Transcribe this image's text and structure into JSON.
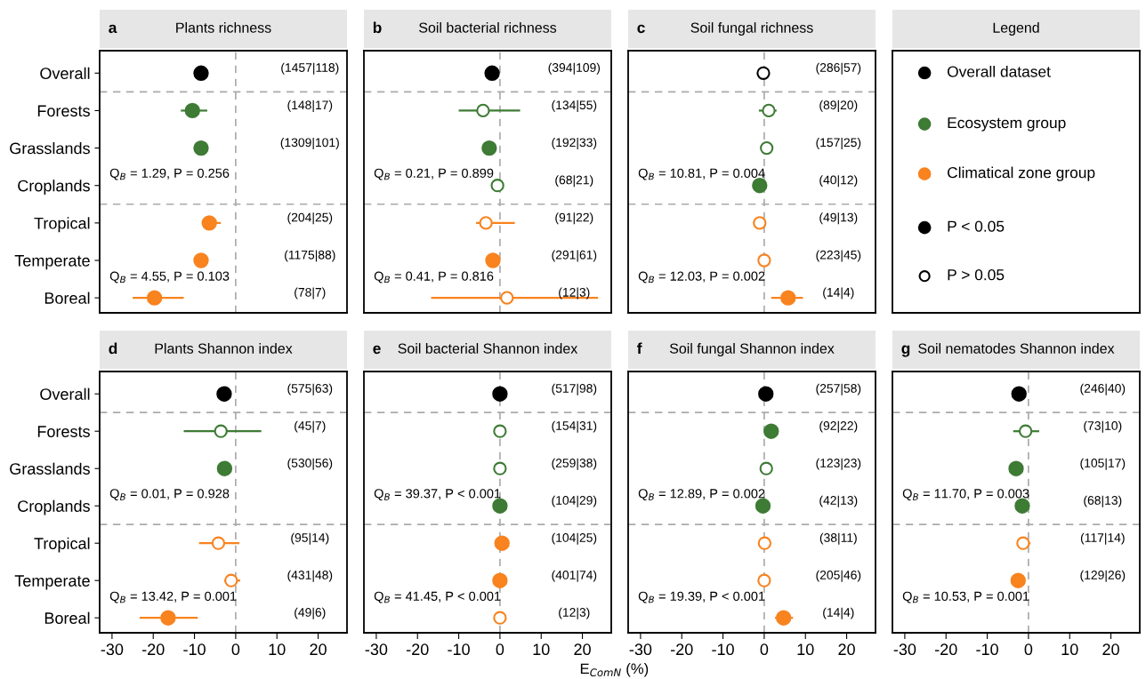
{
  "chart_data": [
    {
      "type": "scatter",
      "subtitle": "a",
      "title": "Plants richness",
      "orientation": "horizontal",
      "marker": "circle",
      "tick_labels": "y",
      "xlim": [
        -33,
        27
      ],
      "xticks": [
        -30,
        -20,
        -10,
        0,
        10,
        20
      ],
      "categories": [
        "Overall",
        "Forests",
        "Grasslands",
        "Croplands",
        "Tropical",
        "Temperate",
        "Boreal"
      ],
      "series": [
        {
          "colors": [
            "#000000",
            "#3e7b35",
            "#3e7b35",
            null,
            "#f8831f",
            "#f8831f",
            "#f8831f"
          ],
          "values": [
            -8.4,
            -10.5,
            -8.4,
            null,
            -6.4,
            -8.4,
            -19.7
          ],
          "errors": [
            null,
            [
              -13.3,
              -6.9
            ],
            null,
            null,
            [
              -7.5,
              -3.6
            ],
            null,
            [
              -25,
              -12.6
            ]
          ]
        }
      ],
      "value_labels": [
        "(1457|118)",
        "(148|17)",
        "(1309|101)",
        null,
        "(204|25)",
        "(1175|88)",
        "(78|7)"
      ],
      "annotations": [
        "Q$_{B}$ = 1.29, P = 0.256",
        "Q$_{B}$ = 4.55, P = 0.103"
      ],
      "ref_lines": [
        {
          "axis": "x",
          "value": 0,
          "color": "#aaaaaa",
          "line_style": "dashed"
        }
      ]
    },
    {
      "type": "scatter",
      "subtitle": "b",
      "title": "Soil bacterial richness",
      "orientation": "horizontal",
      "marker": "circle",
      "tick_labels": false,
      "xlim": [
        -33,
        27
      ],
      "xticks": [
        -30,
        -20,
        -10,
        0,
        10,
        20
      ],
      "categories": [
        null,
        null,
        null,
        null,
        null,
        null,
        null
      ],
      "series": [
        {
          "colors": [
            "#000000",
            null,
            "#3e7b35",
            null,
            null,
            "#f8831f",
            null
          ],
          "values": [
            -1.9,
            null,
            -2.6,
            null,
            null,
            -1.7,
            null
          ],
          "errors": [
            null,
            null,
            null,
            null,
            null,
            null,
            null
          ]
        },
        {
          "color": "#ffffff",
          "colors": [
            null,
            "#3e7b35",
            null,
            "#3e7b35",
            "#f8831f",
            null,
            "#f8831f"
          ],
          "values": [
            null,
            -4.1,
            null,
            -0.6,
            -3.4,
            null,
            1.7
          ],
          "errors": [
            null,
            [
              -10,
              4.9
            ],
            null,
            null,
            [
              -5.8,
              3.6
            ],
            null,
            [
              -16.7,
              23.8
            ]
          ]
        }
      ],
      "value_labels": [
        "(394|109)",
        "(134|55)",
        "(192|33)",
        "(68|21)",
        "(91|22)",
        "(291|61)",
        "(12|3)"
      ],
      "annotations": [
        "Q$_{B}$ = 0.21, P = 0.899",
        "Q$_{B}$ = 0.41, P = 0.816"
      ],
      "ref_lines": [
        {
          "axis": "x",
          "value": 0,
          "color": "#aaaaaa",
          "line_style": "dashed"
        }
      ]
    },
    {
      "type": "scatter",
      "subtitle": "c",
      "title": "Soil fungal richness",
      "orientation": "horizontal",
      "marker": "circle",
      "tick_labels": false,
      "xlim": [
        -33,
        27
      ],
      "xticks": [
        -30,
        -20,
        -10,
        0,
        10,
        20
      ],
      "categories": [
        null,
        null,
        null,
        null,
        null,
        null,
        null
      ],
      "series": [
        {
          "colors": [
            null,
            null,
            null,
            "#3e7b35",
            null,
            null,
            "#f8831f"
          ],
          "values": [
            null,
            null,
            null,
            -1.1,
            null,
            null,
            5.8
          ],
          "errors": [
            null,
            null,
            null,
            null,
            null,
            null,
            [
              1.7,
              9.4
            ]
          ]
        },
        {
          "color": "#ffffff",
          "colors": [
            "#000000",
            "#3e7b35",
            "#3e7b35",
            null,
            "#f8831f",
            "#f8831f",
            null
          ],
          "values": [
            -0.2,
            1.1,
            0.6,
            null,
            -1.1,
            0,
            null
          ],
          "errors": [
            null,
            [
              -1.3,
              3.0
            ],
            null,
            null,
            [
              -2.6,
              0
            ],
            null,
            null
          ]
        }
      ],
      "value_labels": [
        "(286|57)",
        "(89|20)",
        "(157|25)",
        "(40|12)",
        "(49|13)",
        "(223|45)",
        "(14|4)"
      ],
      "annotations": [
        "Q$_{B}$ = 10.81, P = 0.004",
        "Q$_{B}$ = 12.03, P = 0.002"
      ],
      "ref_lines": [
        {
          "axis": "x",
          "value": 0,
          "color": "#aaaaaa",
          "line_style": "dashed"
        }
      ]
    },
    {
      "type": "other",
      "title": "Legend",
      "series": [
        {
          "name": "Overall dataset",
          "color": "#000000"
        },
        {
          "name": "Ecosystem group",
          "color": "#3e7b35"
        },
        {
          "name": "Climatical zone group",
          "color": "#f8831f"
        },
        {
          "name": "P < 0.05",
          "color": "#000000"
        },
        {
          "name": "P > 0.05",
          "color": "#ffffff"
        }
      ]
    },
    {
      "type": "scatter",
      "subtitle": "d",
      "title": "Plants Shannon index",
      "orientation": "horizontal",
      "marker": "circle",
      "xlim": [
        -33,
        27
      ],
      "xticks": [
        -30,
        -20,
        -10,
        0,
        10,
        20
      ],
      "categories": [
        "Overall",
        "Forests",
        "Grasslands",
        "Croplands",
        "Tropical",
        "Temperate",
        "Boreal"
      ],
      "series": [
        {
          "colors": [
            "#000000",
            null,
            "#3e7b35",
            null,
            null,
            null,
            "#f8831f"
          ],
          "values": [
            -2.8,
            null,
            -2.7,
            null,
            null,
            null,
            -16.4
          ],
          "errors": [
            [
              -4.1,
              -1.3
            ],
            null,
            null,
            null,
            null,
            null,
            [
              -23.3,
              -9.2
            ]
          ]
        },
        {
          "color": "#ffffff",
          "colors": [
            null,
            "#3e7b35",
            null,
            null,
            "#f8831f",
            "#f8831f",
            null
          ],
          "values": [
            null,
            -3.6,
            null,
            null,
            -4.2,
            -1.1,
            null
          ],
          "errors": [
            null,
            [
              -12.6,
              6.2
            ],
            null,
            null,
            [
              -8.9,
              0.9
            ],
            [
              -2.8,
              1.1
            ],
            null
          ]
        }
      ],
      "value_labels": [
        "(575|63)",
        "(45|7)",
        "(530|56)",
        null,
        "(95|14)",
        "(431|48)",
        "(49|6)"
      ],
      "annotations": [
        "Q$_{B}$ = 0.01, P = 0.928",
        "Q$_{B}$ = 13.42, P = 0.001"
      ],
      "ref_lines": [
        {
          "axis": "x",
          "value": 0,
          "color": "#aaaaaa",
          "line_style": "dashed"
        }
      ]
    },
    {
      "type": "scatter",
      "subtitle": "e",
      "title": "Soil bacterial Shannon index",
      "orientation": "horizontal",
      "marker": "circle",
      "tick_labels": "x",
      "xlabel": "E$_{ComN}$ (%)",
      "xlim": [
        -33,
        27
      ],
      "xticks": [
        -30,
        -20,
        -10,
        0,
        10,
        20
      ],
      "categories": [
        null,
        null,
        null,
        null,
        null,
        null,
        null
      ],
      "series": [
        {
          "colors": [
            "#000000",
            null,
            null,
            "#3e7b35",
            "#f8831f",
            "#f8831f",
            null
          ],
          "values": [
            0,
            null,
            null,
            0,
            0.5,
            0,
            null
          ]
        },
        {
          "color": "#ffffff",
          "colors": [
            null,
            "#3e7b35",
            "#3e7b35",
            null,
            null,
            null,
            "#f8831f"
          ],
          "values": [
            null,
            0,
            0,
            null,
            null,
            null,
            0
          ]
        }
      ],
      "value_labels": [
        "(517|98)",
        "(154|31)",
        "(259|38)",
        "(104|29)",
        "(104|25)",
        "(401|74)",
        "(12|3)"
      ],
      "annotations": [
        "Q$_{B}$ = 39.37, P < 0.001",
        "Q$_{B}$ = 41.45, P < 0.001"
      ],
      "ref_lines": [
        {
          "axis": "x",
          "value": 0,
          "color": "#aaaaaa",
          "line_style": "dashed"
        }
      ]
    },
    {
      "type": "scatter",
      "subtitle": "f",
      "title": "Soil fungal Shannon index",
      "orientation": "horizontal",
      "marker": "circle",
      "tick_labels": "x",
      "xlim": [
        -33,
        27
      ],
      "xticks": [
        -30,
        -20,
        -10,
        0,
        10,
        20
      ],
      "categories": [
        null,
        null,
        null,
        null,
        null,
        null,
        null
      ],
      "series": [
        {
          "colors": [
            "#000000",
            "#3e7b35",
            null,
            "#3e7b35",
            null,
            null,
            "#f8831f"
          ],
          "values": [
            0.4,
            1.7,
            null,
            -0.3,
            null,
            null,
            4.7
          ],
          "errors": [
            null,
            null,
            null,
            null,
            null,
            null,
            [
              2.6,
              7.0
            ]
          ]
        },
        {
          "color": "#ffffff",
          "colors": [
            null,
            null,
            "#3e7b35",
            null,
            "#f8831f",
            "#f8831f",
            null
          ],
          "values": [
            null,
            null,
            0.5,
            null,
            0.1,
            0,
            null
          ]
        }
      ],
      "value_labels": [
        "(257|58)",
        "(92|22)",
        "(123|23)",
        "(42|13)",
        "(38|11)",
        "(205|46)",
        "(14|4)"
      ],
      "annotations": [
        "Q$_{B}$ = 12.89, P = 0.002",
        "Q$_{B}$ = 19.39, P < 0.001"
      ],
      "ref_lines": [
        {
          "axis": "x",
          "value": 0,
          "color": "#aaaaaa",
          "line_style": "dashed"
        }
      ]
    },
    {
      "type": "scatter",
      "subtitle": "g",
      "title": "Soil nematodes Shannon index",
      "orientation": "horizontal",
      "marker": "circle",
      "tick_labels": "x",
      "xlim": [
        -33,
        27
      ],
      "xticks": [
        -30,
        -20,
        -10,
        0,
        10,
        20
      ],
      "categories": [
        null,
        null,
        null,
        null,
        null,
        null,
        null
      ],
      "series": [
        {
          "colors": [
            "#000000",
            null,
            "#3e7b35",
            "#3e7b35",
            null,
            "#f8831f",
            null
          ],
          "values": [
            -2.3,
            null,
            -3.0,
            -1.5,
            null,
            -2.5,
            null
          ]
        },
        {
          "color": "#ffffff",
          "colors": [
            null,
            "#3e7b35",
            null,
            null,
            "#f8831f",
            null,
            null
          ],
          "values": [
            null,
            -0.7,
            null,
            null,
            -1.3,
            null,
            null
          ],
          "errors": [
            null,
            [
              -3.7,
              2.6
            ],
            null,
            null,
            [
              -2.6,
              0.5
            ],
            null,
            null
          ]
        }
      ],
      "value_labels": [
        "(246|40)",
        "(73|10)",
        "(105|17)",
        "(68|13)",
        "(117|14)",
        "(129|26)",
        null
      ],
      "annotations": [
        "Q$_{B}$ = 11.70, P = 0.003",
        "Q$_{B}$ = 10.53, P = 0.001"
      ],
      "ref_lines": [
        {
          "axis": "x",
          "value": 0,
          "color": "#aaaaaa",
          "line_style": "dashed"
        }
      ]
    }
  ]
}
